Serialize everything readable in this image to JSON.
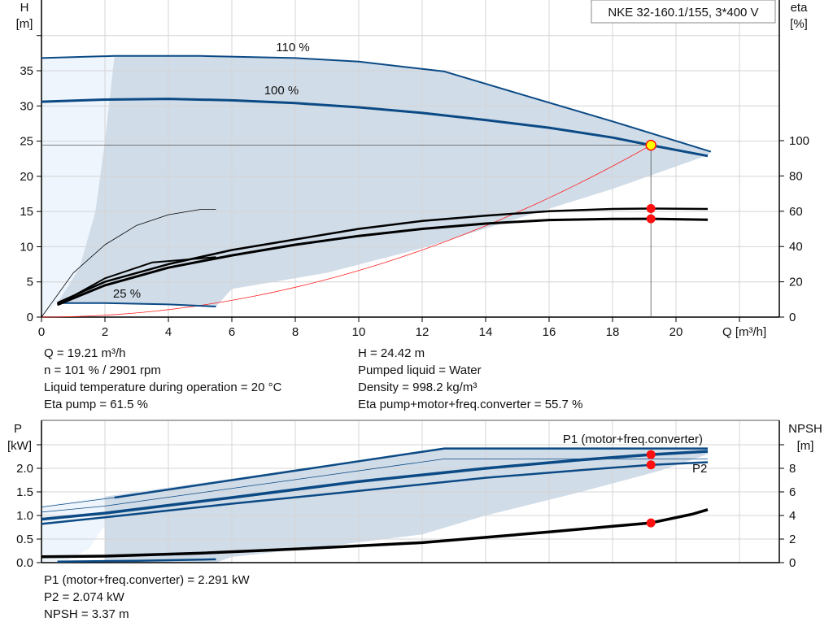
{
  "chart_data": [
    {
      "type": "line",
      "title": "NKE 32-160.1/155, 3*400 V",
      "xlabel": "Q [m³/h]",
      "ylabel": [
        "H",
        "[m]"
      ],
      "y2label": [
        "eta",
        "[%]"
      ],
      "xlim": [
        0,
        23.3
      ],
      "ylim": [
        0,
        45
      ],
      "y2lim": [
        0,
        180
      ],
      "xticks": [
        0,
        2,
        4,
        6,
        8,
        10,
        12,
        14,
        16,
        18,
        20
      ],
      "yticks": [
        0,
        5,
        10,
        15,
        20,
        25,
        30,
        35
      ],
      "y2ticks": [
        0,
        20,
        40,
        60,
        80,
        100
      ],
      "grid": true,
      "colors": {
        "curve": "#0b4a85",
        "shade": "#d0dce8",
        "shade_light": "#eef5fc",
        "system": "#ff2020",
        "eta": "#000000",
        "point": "#ff1010",
        "duty": "#ffff00"
      },
      "shade_envelope": [
        [
          0.5,
          2.0
        ],
        [
          1.2,
          7
        ],
        [
          1.7,
          15
        ],
        [
          2.0,
          25
        ],
        [
          2.3,
          37.1
        ],
        [
          5,
          37.1
        ],
        [
          8,
          36.8
        ],
        [
          10,
          36.3
        ],
        [
          12.7,
          34.9
        ],
        [
          15,
          31.8
        ],
        [
          18,
          27.8
        ],
        [
          21.1,
          23.5
        ],
        [
          21,
          23.0
        ],
        [
          18,
          18.2
        ],
        [
          16,
          15.4
        ],
        [
          14,
          12.6
        ],
        [
          12,
          9.8
        ],
        [
          9,
          6.3
        ],
        [
          6,
          4.0
        ],
        [
          5.5,
          1.5
        ],
        [
          4,
          1.8
        ],
        [
          2,
          2.0
        ]
      ],
      "shade_light": [
        [
          0,
          0
        ],
        [
          0,
          36.8
        ],
        [
          2.3,
          37.1
        ],
        [
          2.0,
          25
        ],
        [
          1.7,
          15
        ],
        [
          1.2,
          7
        ],
        [
          0.5,
          2.0
        ]
      ],
      "series": [
        {
          "name": "110 %",
          "axis": "H",
          "width": 2,
          "points": [
            [
              0,
              36.8
            ],
            [
              2.3,
              37.1
            ],
            [
              5,
              37.1
            ],
            [
              8,
              36.8
            ],
            [
              10,
              36.3
            ],
            [
              12.7,
              34.9
            ],
            [
              15,
              31.8
            ],
            [
              18,
              27.8
            ],
            [
              21.1,
              23.5
            ]
          ]
        },
        {
          "name": "100 %",
          "axis": "H",
          "width": 3,
          "points": [
            [
              0,
              30.6
            ],
            [
              2,
              30.9
            ],
            [
              4,
              31.0
            ],
            [
              6,
              30.8
            ],
            [
              8,
              30.4
            ],
            [
              10,
              29.8
            ],
            [
              12,
              29.0
            ],
            [
              14,
              28.0
            ],
            [
              16,
              26.9
            ],
            [
              18,
              25.5
            ],
            [
              19.21,
              24.42
            ],
            [
              21,
              22.9
            ]
          ]
        },
        {
          "name": "25 %",
          "axis": "H",
          "width": 2,
          "points": [
            [
              0.5,
              2.0
            ],
            [
              2,
              2.0
            ],
            [
              4,
              1.8
            ],
            [
              5.5,
              1.5
            ]
          ]
        },
        {
          "axis": "eta",
          "width": 2.5,
          "points": [
            [
              0.5,
              8
            ],
            [
              2,
              20
            ],
            [
              4,
              30
            ],
            [
              6,
              38
            ],
            [
              8,
              44
            ],
            [
              10,
              50
            ],
            [
              12,
              54.5
            ],
            [
              14,
              57.5
            ],
            [
              16,
              60
            ],
            [
              18,
              61.3
            ],
            [
              19.21,
              61.5
            ],
            [
              21,
              61.3
            ]
          ]
        },
        {
          "axis": "eta",
          "width": 3,
          "points": [
            [
              0.5,
              7
            ],
            [
              2,
              18
            ],
            [
              4,
              28
            ],
            [
              6,
              35
            ],
            [
              8,
              41
            ],
            [
              10,
              46
            ],
            [
              12,
              50
            ],
            [
              14,
              53
            ],
            [
              16,
              55
            ],
            [
              18,
              55.6
            ],
            [
              19.21,
              55.7
            ],
            [
              21,
              55.2
            ]
          ]
        },
        {
          "axis": "eta",
          "width": 2,
          "points": [
            [
              0.5,
              7
            ],
            [
              2,
              22
            ],
            [
              3.5,
              31
            ],
            [
              5.5,
              34
            ]
          ]
        },
        {
          "axis": "eta",
          "width": 0.8,
          "points": [
            [
              0,
              0
            ],
            [
              1,
              25
            ],
            [
              2,
              41
            ],
            [
              3,
              52
            ],
            [
              4,
              58
            ],
            [
              5,
              61
            ],
            [
              5.5,
              61
            ]
          ]
        }
      ],
      "system_curve": {
        "h_at_duty": 24.42,
        "q_at_duty": 19.21
      },
      "duty_point": {
        "Q": 19.21,
        "H": 24.42
      },
      "eta_points": [
        61.5,
        55.7
      ]
    },
    {
      "type": "line",
      "ylabel": [
        "P",
        "[kW]"
      ],
      "y2label": [
        "NPSH",
        "[m]"
      ],
      "xlim": [
        0,
        23.3
      ],
      "ylim": [
        0,
        3.0
      ],
      "y2lim": [
        0,
        12
      ],
      "yticks": [
        "0.0",
        "0.5",
        "1.0",
        "1.5",
        "2.0"
      ],
      "y2ticks": [
        0,
        2,
        4,
        6,
        8
      ],
      "grid": true,
      "shade_envelope": [
        [
          2.0,
          1.4
        ],
        [
          12.7,
          2.42
        ],
        [
          21,
          2.42
        ],
        [
          21,
          2.3
        ],
        [
          19.5,
          1.95
        ],
        [
          17,
          1.5
        ],
        [
          14,
          1.0
        ],
        [
          12,
          0.6
        ],
        [
          9,
          0.35
        ],
        [
          6,
          0.12
        ],
        [
          5.5,
          0.0
        ],
        [
          2,
          0.0
        ]
      ],
      "shade_light": [
        [
          0,
          0
        ],
        [
          0,
          1.2
        ],
        [
          2,
          1.4
        ],
        [
          2,
          0.8
        ],
        [
          1.5,
          0.3
        ],
        [
          0.8,
          0.05
        ]
      ],
      "series": [
        {
          "name": "P1 (motor+freq.converter)",
          "axis": "P",
          "width": 2.5,
          "points": [
            [
              2.3,
              1.38
            ],
            [
              12.7,
              2.42
            ],
            [
              21,
              2.42
            ]
          ]
        },
        {
          "axis": "P",
          "width": 0.8,
          "points": [
            [
              0,
              1.18
            ],
            [
              2.3,
              1.38
            ]
          ]
        },
        {
          "axis": "P",
          "width": 0.8,
          "points": [
            [
              0,
              1.07
            ],
            [
              2,
              1.2
            ],
            [
              12.7,
              2.2
            ],
            [
              21,
              2.2
            ]
          ]
        },
        {
          "axis": "P",
          "width": 3.5,
          "points": [
            [
              0,
              0.92
            ],
            [
              2,
              1.05
            ],
            [
              6,
              1.38
            ],
            [
              10,
              1.72
            ],
            [
              14,
              2.0
            ],
            [
              17,
              2.18
            ],
            [
              19.21,
              2.291
            ],
            [
              21,
              2.36
            ]
          ]
        },
        {
          "name": "P2",
          "axis": "P",
          "width": 2.5,
          "points": [
            [
              0,
              0.82
            ],
            [
              2,
              0.96
            ],
            [
              6,
              1.25
            ],
            [
              10,
              1.52
            ],
            [
              14,
              1.8
            ],
            [
              17,
              1.96
            ],
            [
              19.21,
              2.074
            ],
            [
              21,
              2.13
            ]
          ]
        },
        {
          "axis": "P",
          "width": 2.5,
          "points": [
            [
              0.5,
              0.02
            ],
            [
              3,
              0.04
            ],
            [
              5.5,
              0.07
            ]
          ]
        },
        {
          "axis": "NPSH",
          "width": 3.5,
          "color": "#000000",
          "points": [
            [
              0,
              0.5
            ],
            [
              2,
              0.55
            ],
            [
              5,
              0.8
            ],
            [
              8,
              1.15
            ],
            [
              12,
              1.7
            ],
            [
              16,
              2.6
            ],
            [
              19.21,
              3.37
            ],
            [
              20.5,
              4.1
            ],
            [
              21,
              4.5
            ]
          ]
        }
      ],
      "points": {
        "P1": 2.291,
        "P2": 2.074,
        "NPSH": 3.37,
        "Q": 19.21
      }
    }
  ],
  "info": {
    "left": [
      "Q = 19.21 m³/h",
      "n = 101 % / 2901 rpm",
      "Liquid temperature during operation = 20 °C",
      "Eta pump = 61.5 %"
    ],
    "right": [
      "H = 24.42 m",
      "Pumped liquid = Water",
      "Density = 998.2 kg/m³",
      "Eta pump+motor+freq.converter = 55.7 %"
    ],
    "bottom": [
      "P1 (motor+freq.converter) = 2.291 kW",
      "P2 = 2.074 kW",
      "NPSH = 3.37 m"
    ]
  }
}
